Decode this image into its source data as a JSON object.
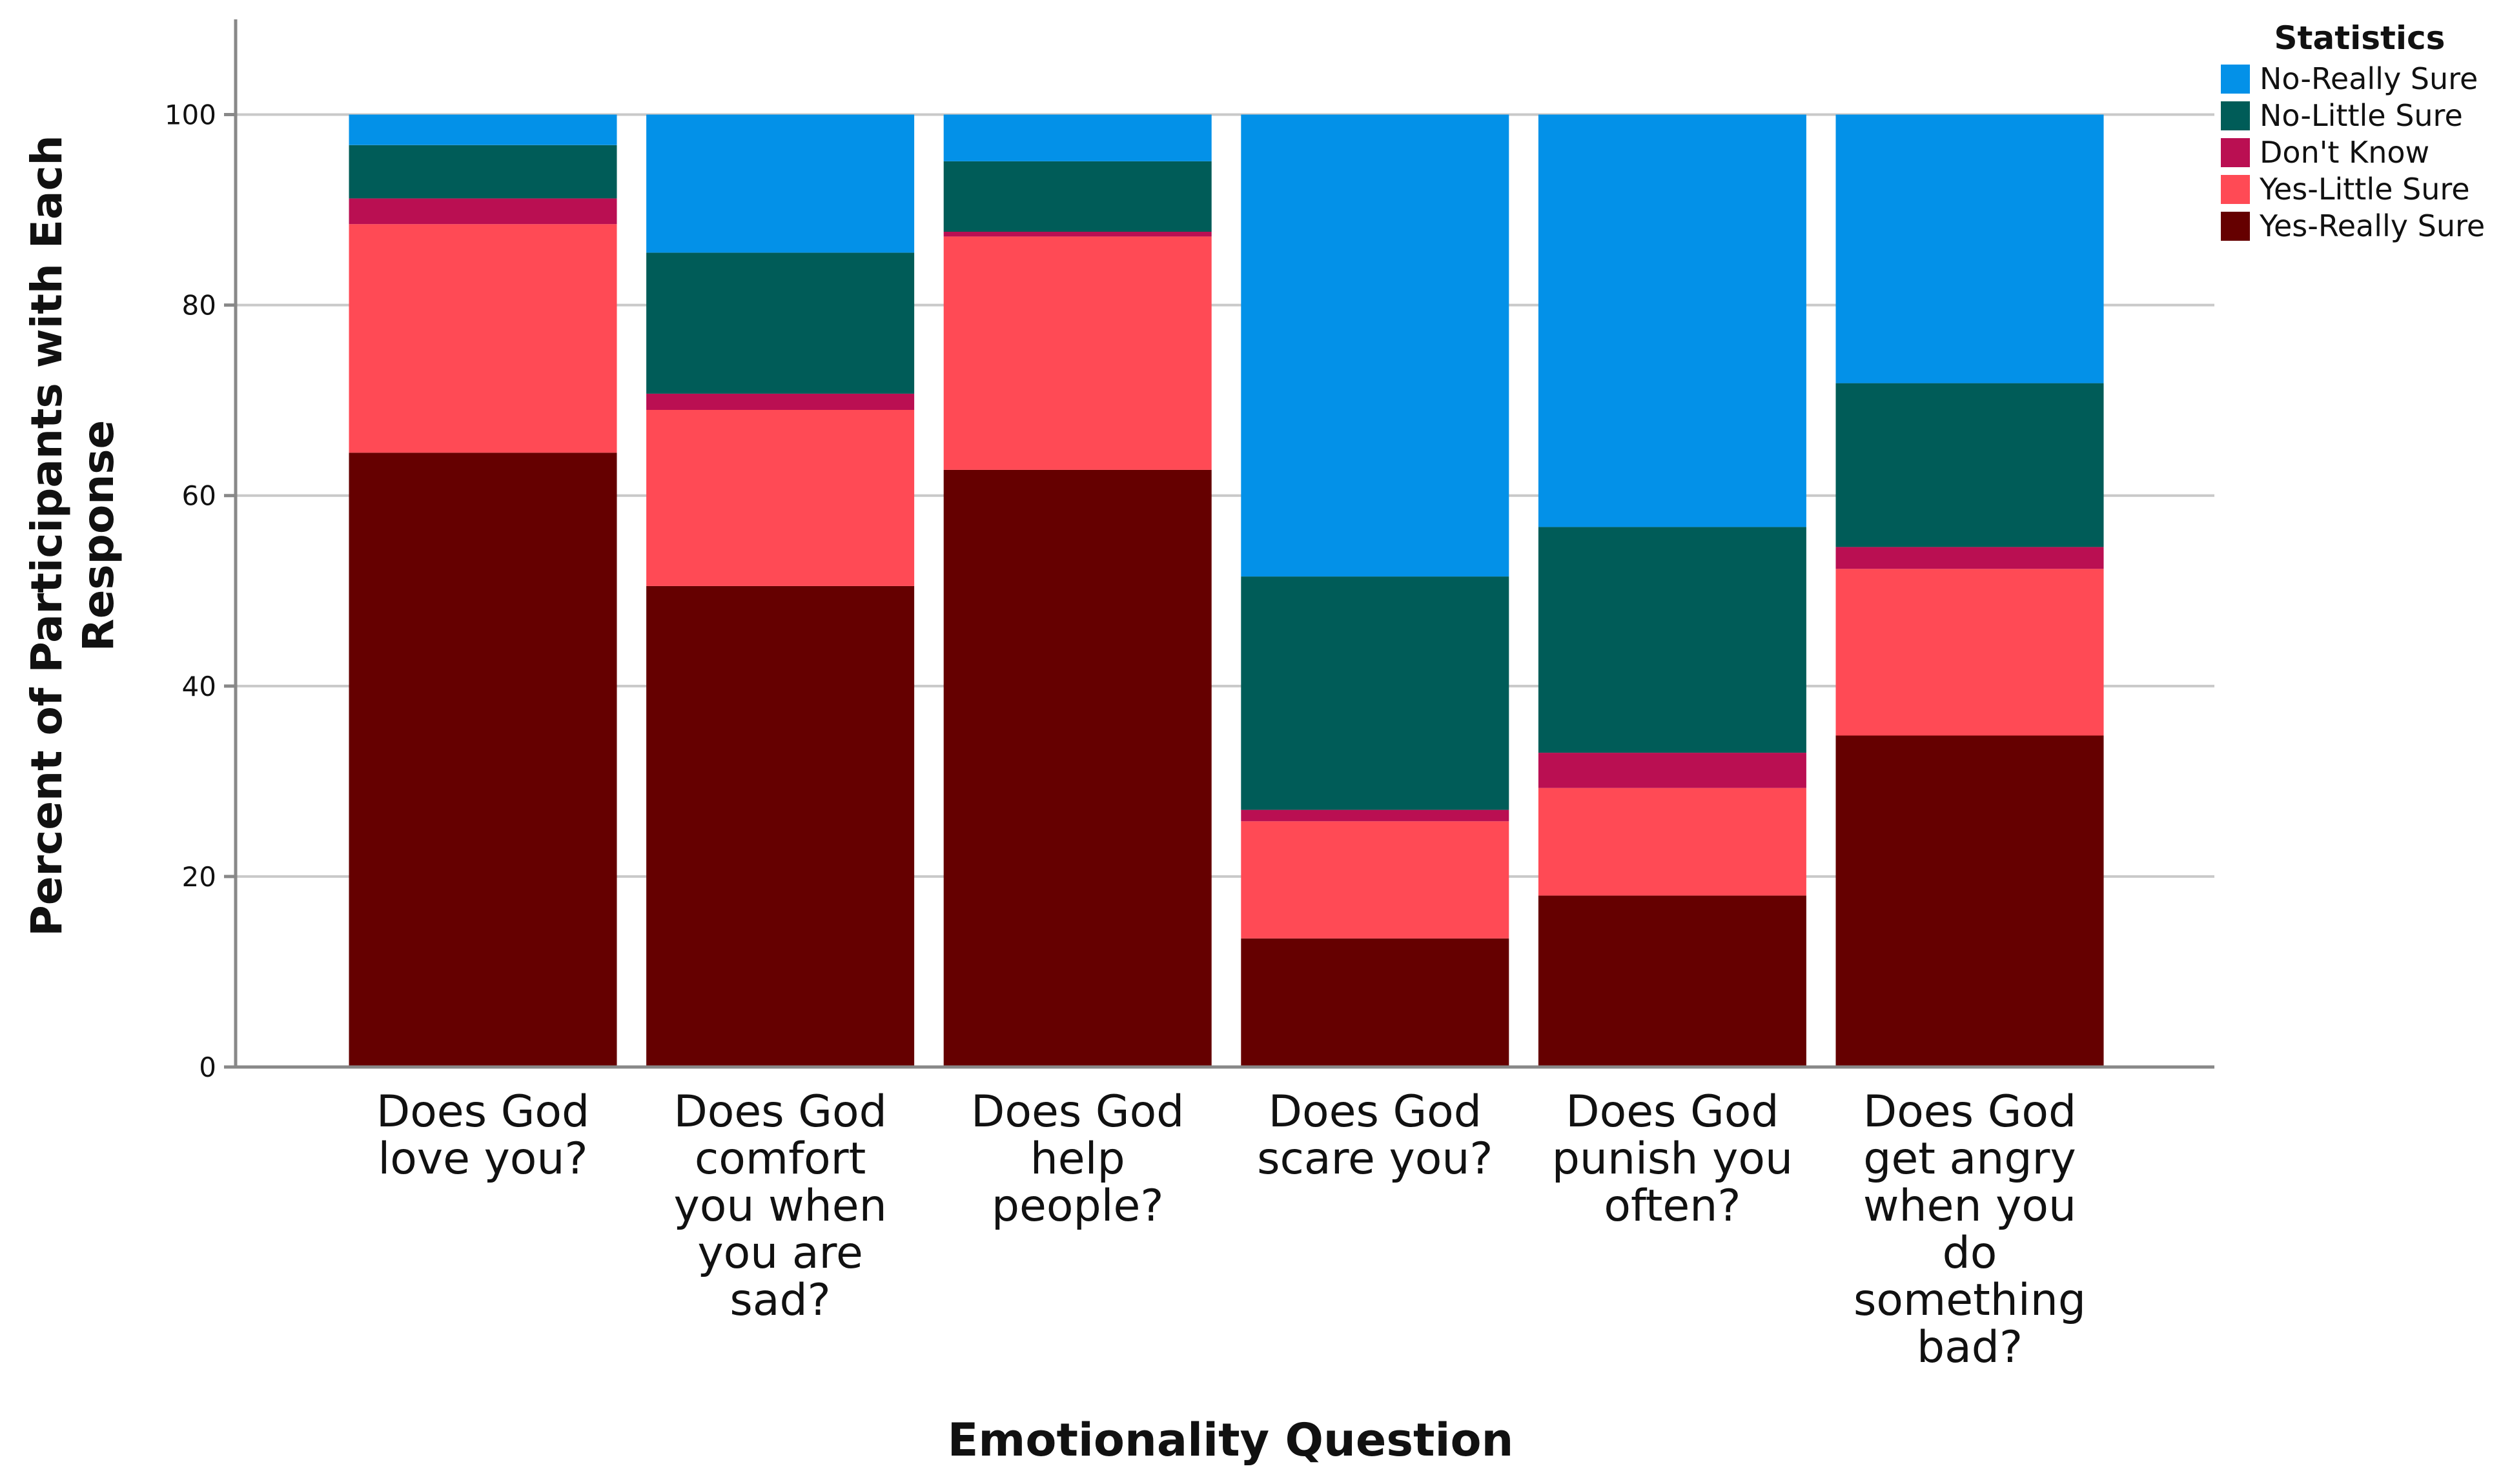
{
  "chart_data": {
    "type": "bar",
    "stacked": true,
    "title": "",
    "xlabel": "Emotionality Question",
    "ylabel_lines": [
      "Percent of Participants with Each",
      "Response"
    ],
    "ylim": [
      0,
      110
    ],
    "yticks": [
      0,
      20,
      40,
      60,
      80,
      100
    ],
    "ytick_labels": [
      "0",
      "20",
      "40",
      "60",
      "80",
      "100"
    ],
    "grid": true,
    "legend_position": "top-right",
    "legend_title": "Statistics",
    "categories": [
      [
        "Does God",
        "love you?"
      ],
      [
        "Does God",
        "comfort",
        "you when",
        "you are",
        "sad?"
      ],
      [
        "Does God",
        "help",
        "people?"
      ],
      [
        "Does God",
        "scare you?"
      ],
      [
        "Does God",
        "punish you",
        "often?"
      ],
      [
        "Does God",
        "get angry",
        "when you",
        "do",
        "something",
        "bad?"
      ]
    ],
    "series": [
      {
        "name": "Yes-Really Sure",
        "color": "#650000",
        "values": [
          64.5,
          50.5,
          62.7,
          13.5,
          18.0,
          34.8
        ]
      },
      {
        "name": "Yes-Little Sure",
        "color": "#ff4a55",
        "values": [
          24.0,
          18.5,
          24.5,
          12.3,
          11.3,
          17.5
        ]
      },
      {
        "name": "Don't Know",
        "color": "#ba0f52",
        "values": [
          2.7,
          1.7,
          0.5,
          1.2,
          3.7,
          2.3
        ]
      },
      {
        "name": "No-Little Sure",
        "color": "#005c58",
        "values": [
          5.6,
          14.8,
          7.4,
          24.5,
          23.7,
          17.2
        ]
      },
      {
        "name": "No-Really Sure",
        "color": "#0391e8",
        "values": [
          3.2,
          14.5,
          4.9,
          48.5,
          43.3,
          28.2
        ]
      }
    ],
    "legend_order": [
      "No-Really Sure",
      "No-Little Sure",
      "Don't Know",
      "Yes-Little Sure",
      "Yes-Really Sure"
    ]
  }
}
